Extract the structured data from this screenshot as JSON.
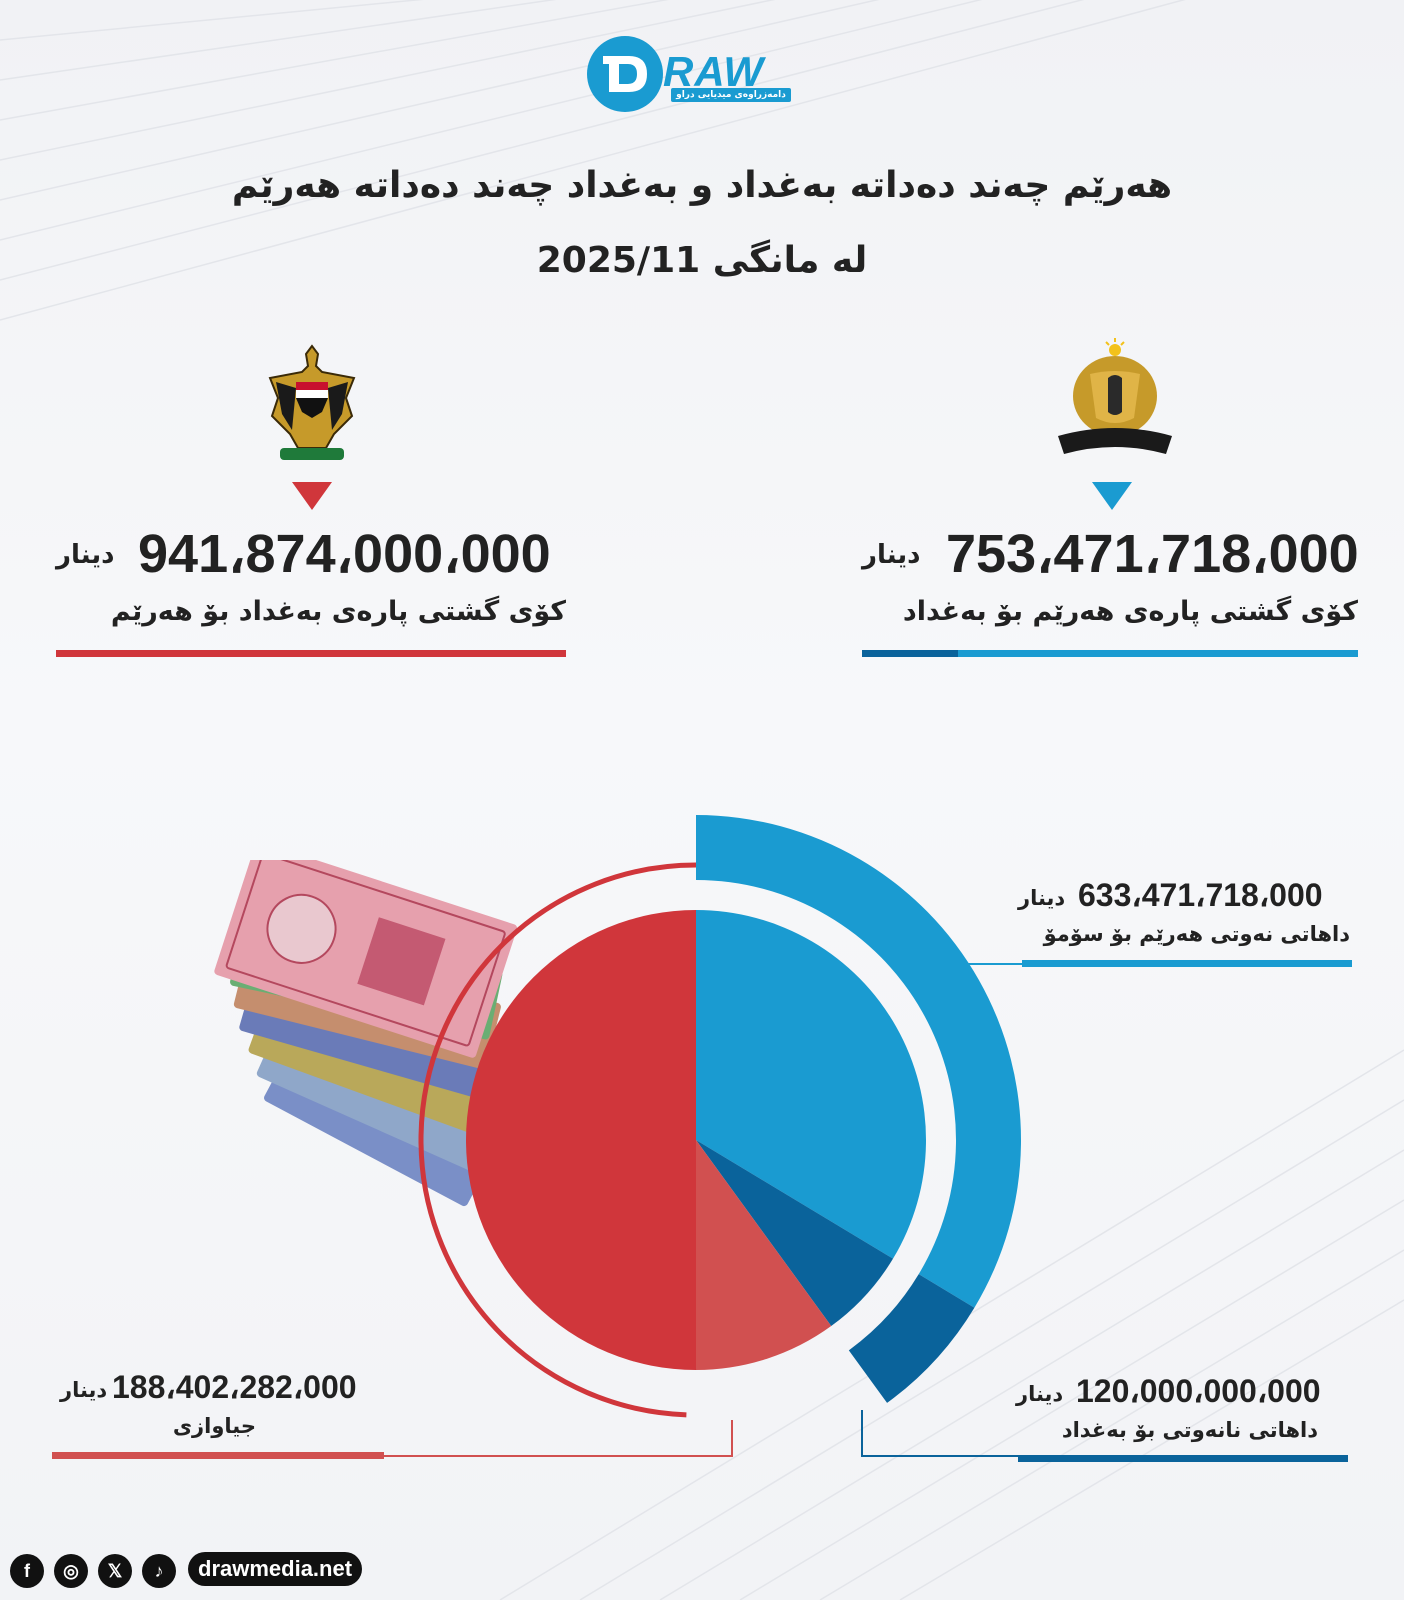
{
  "brand": {
    "logo_text": "RAW",
    "logo_tagline": "دامەزراوەی میدیایی دراو",
    "website": "drawmedia.net",
    "social_icons": [
      "facebook-icon",
      "instagram-icon",
      "x-icon",
      "tiktok-icon"
    ]
  },
  "header": {
    "title_line1": "هەرێم چەند دەداتە بەغداد و بەغداد چەند دەداتە هەرێم",
    "title_line2": "لە مانگی 2025/11"
  },
  "totals": {
    "baghdad_to_region": {
      "amount": "941،874،000،000",
      "unit": "دینار",
      "label": "کۆی گشتی پارەی بەغداد بۆ هەرێم",
      "color": "#d0363b"
    },
    "region_to_baghdad": {
      "amount": "753،471،718،000",
      "unit": "دینار",
      "label": "کۆی گشتی پارەی هەرێم بۆ بەغداد",
      "color": "#1a9bd1"
    }
  },
  "chart_data": {
    "type": "pie",
    "slices": [
      {
        "label": "داهاتی نەوتی هەرێم بۆ سۆمۆ",
        "value": 633471718000,
        "display": "633،471،718،000",
        "unit": "دینار",
        "color": "#1a9bd1"
      },
      {
        "label": "داهاتی نانەوتی بۆ بەغداد",
        "value": 120000000000,
        "display": "120،000،000،000",
        "unit": "دینار",
        "color": "#0a639b"
      },
      {
        "label": "جیاوازی",
        "value": 188402282000,
        "display": "188،402،282،000",
        "unit": "دینار",
        "color": "#d15050"
      }
    ],
    "reference_total": {
      "value": 941874000000,
      "color": "#d0363b"
    }
  }
}
